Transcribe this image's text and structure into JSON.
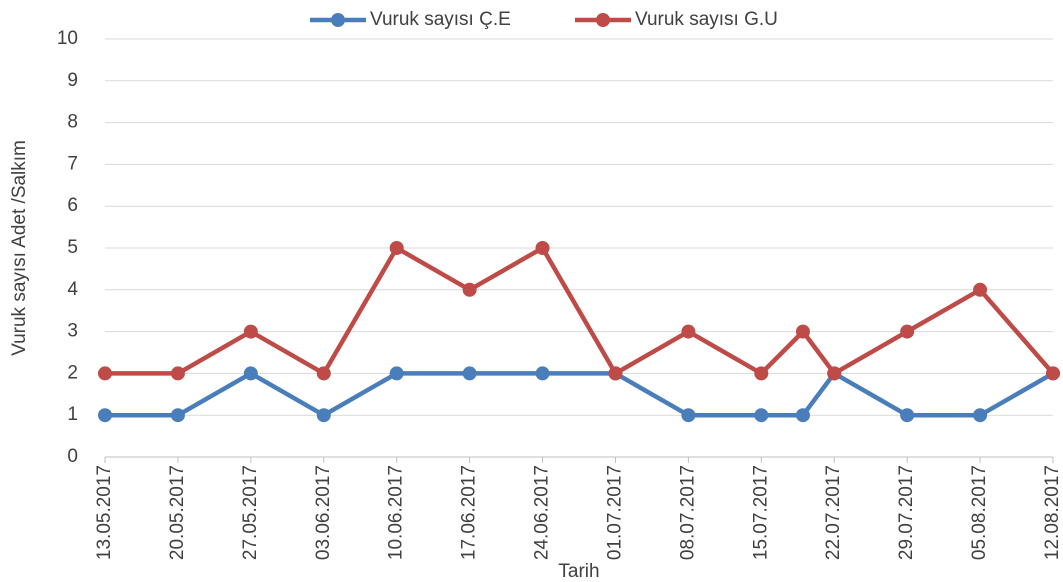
{
  "chart_data": {
    "type": "line",
    "x_label": "Tarih",
    "y_label": "Vuruk sayısı Adet /Salkım",
    "x": [
      "13.05.2017",
      "20.05.2017",
      "27.05.2017",
      "03.06.2017",
      "10.06.2017",
      "17.06.2017",
      "24.06.2017",
      "01.07.2017",
      "08.07.2017",
      "15.07.2017",
      "19.07.2017",
      "22.07.2017",
      "29.07.2017",
      "05.08.2017",
      "12.08.2017"
    ],
    "series": [
      {
        "name": "Vuruk sayısı Ç.E",
        "color": "#4a7ebb",
        "values": [
          1,
          1,
          2,
          1,
          2,
          2,
          2,
          2,
          1,
          1,
          1,
          2,
          1,
          1,
          2
        ]
      },
      {
        "name": "Vuruk sayısı G.U",
        "color": "#be4b48",
        "values": [
          2,
          2,
          3,
          2,
          5,
          4,
          5,
          2,
          3,
          2,
          3,
          2,
          3,
          4,
          2
        ]
      }
    ],
    "xlim": [
      "13.05.2017",
      "12.08.2017"
    ],
    "xticks": [
      "13.05.2017",
      "20.05.2017",
      "27.05.2017",
      "03.06.2017",
      "10.06.2017",
      "17.06.2017",
      "24.06.2017",
      "01.07.2017",
      "08.07.2017",
      "15.07.2017",
      "22.07.2017",
      "29.07.2017",
      "05.08.2017",
      "12.08.2017"
    ],
    "ylim": [
      0,
      10
    ],
    "yticks": [
      0,
      1,
      2,
      3,
      4,
      5,
      6,
      7,
      8,
      9,
      10
    ],
    "grid": true,
    "legend": "top"
  }
}
